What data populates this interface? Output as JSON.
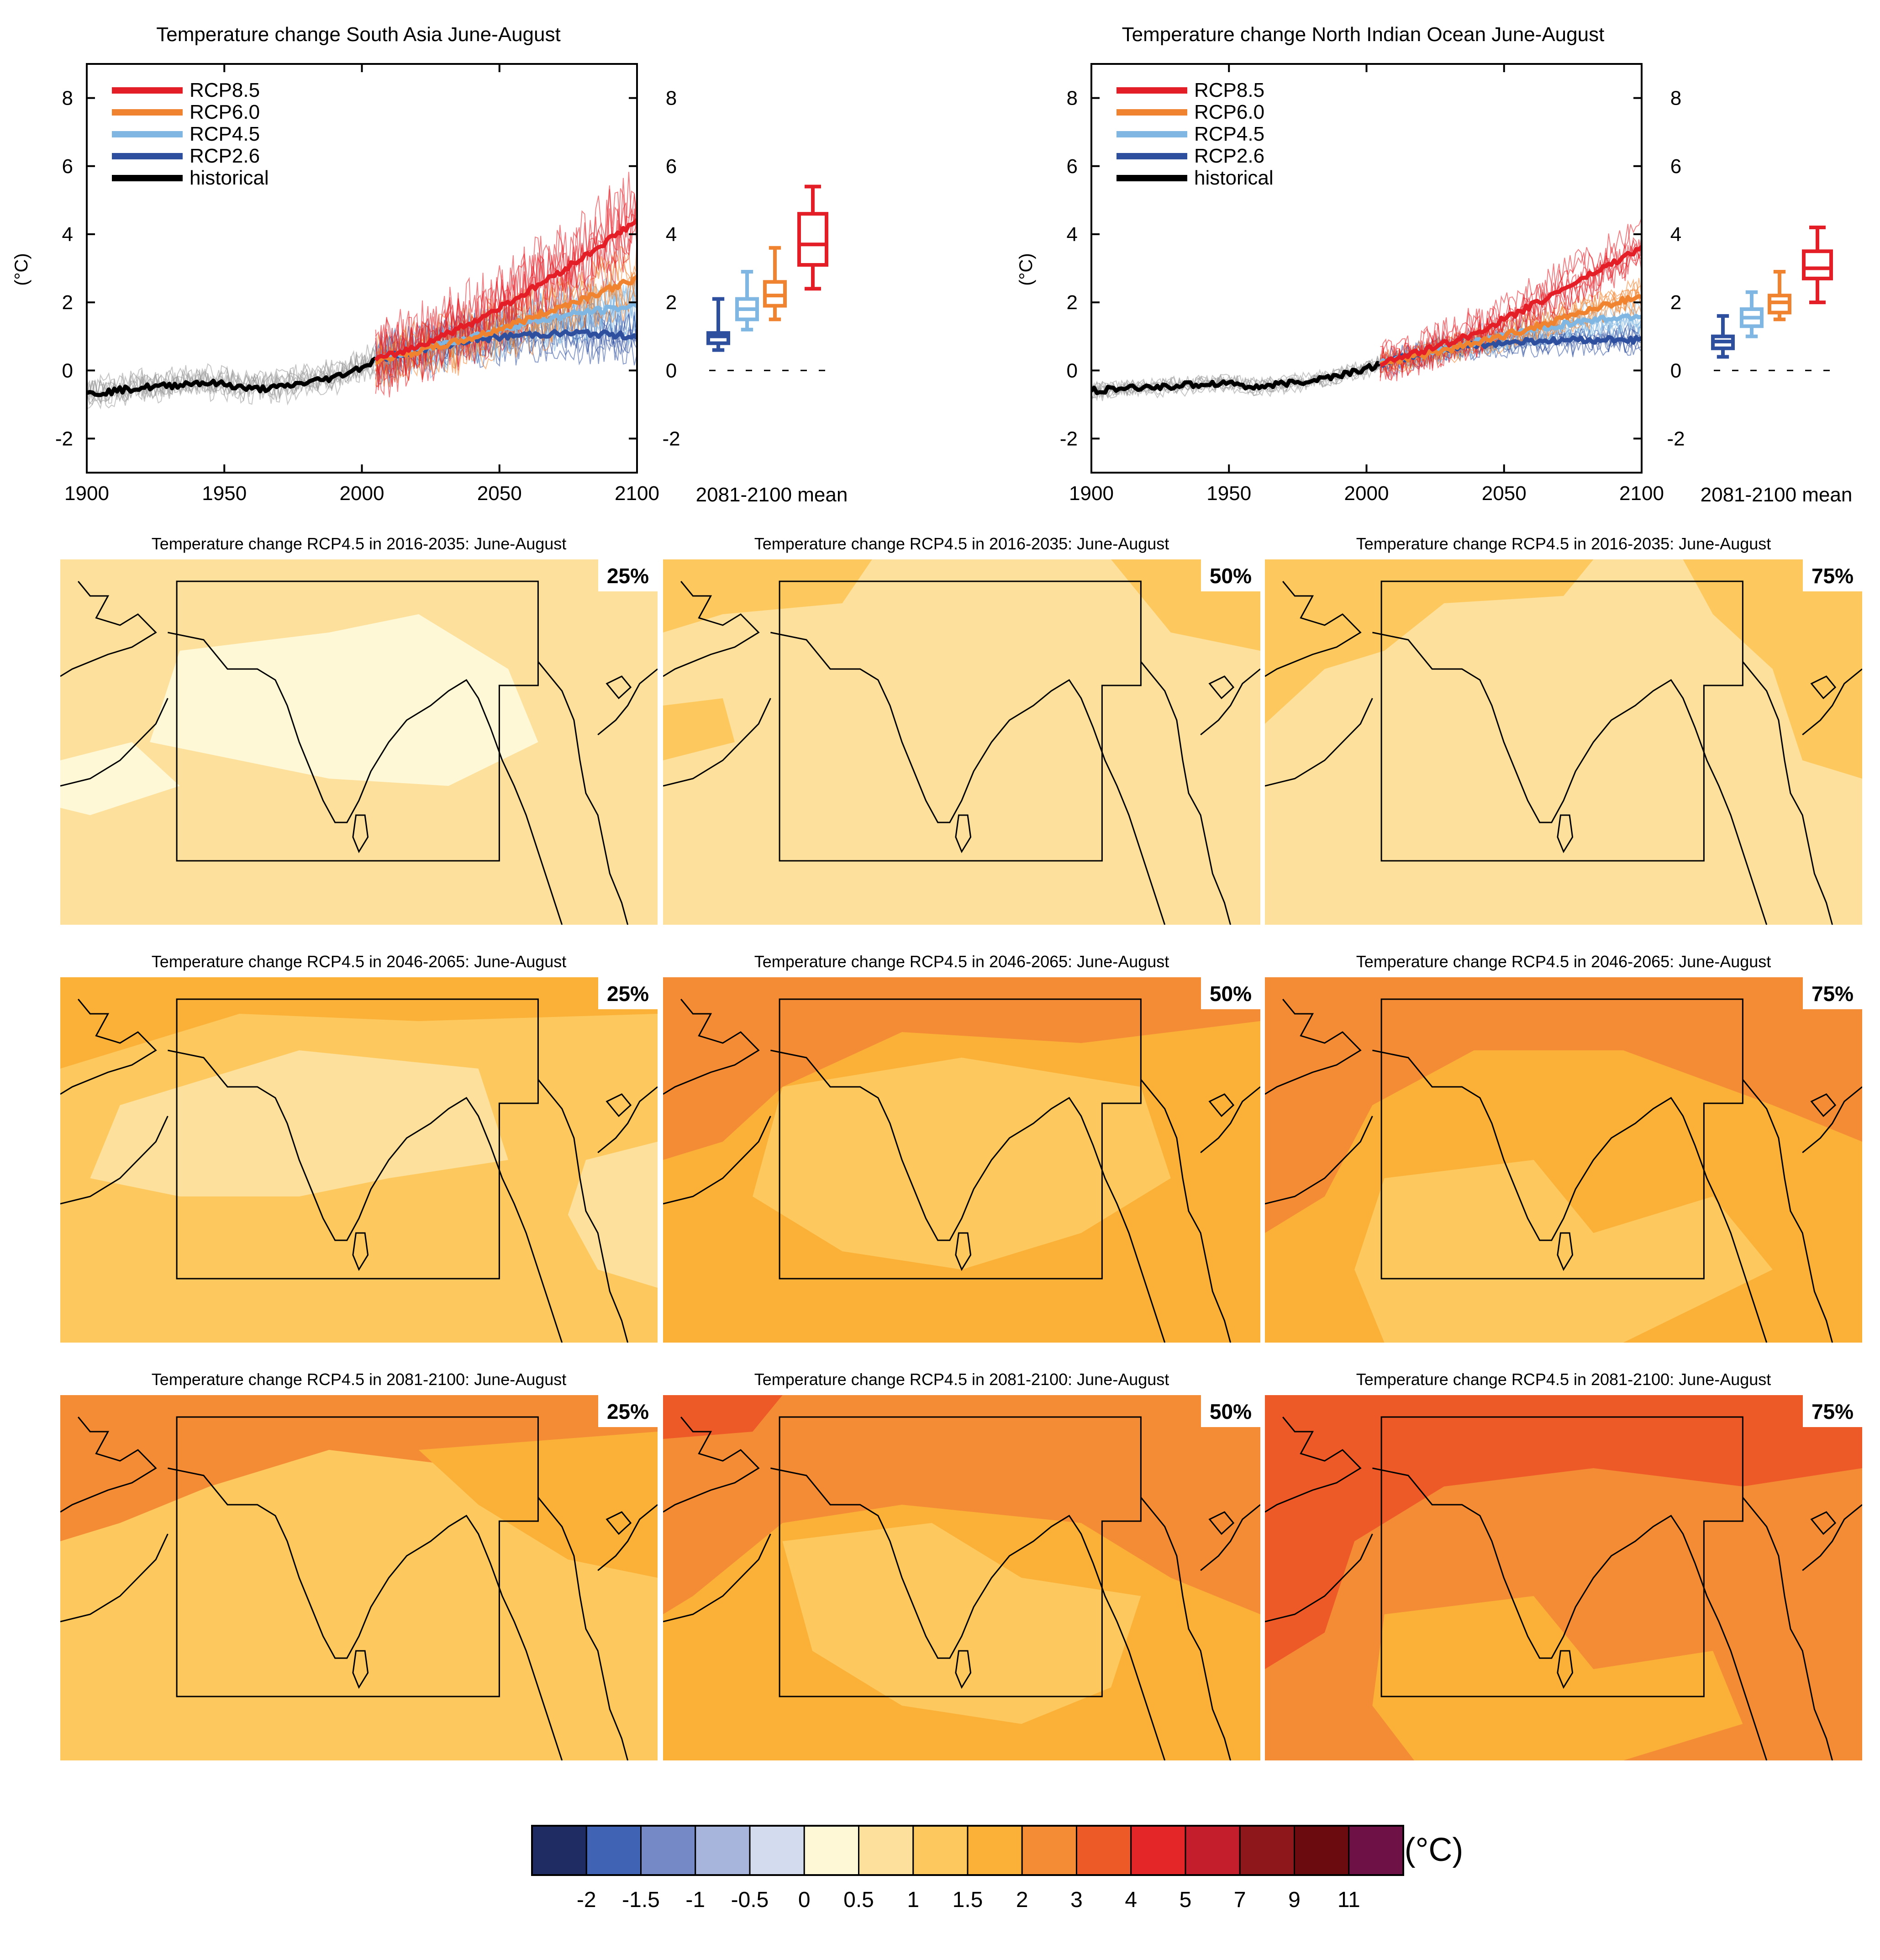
{
  "colors": {
    "rcp85": "#e41e26",
    "rcp60": "#f08330",
    "rcp45": "#7fb7e2",
    "rcp26": "#2e4f9e",
    "historical": "#000000",
    "hist_ensemble": "#999999"
  },
  "colorbar": {
    "unit": "(°C)",
    "labels": [
      "-2",
      "-1.5",
      "-1",
      "-0.5",
      "0",
      "0.5",
      "1",
      "1.5",
      "2",
      "3",
      "4",
      "5",
      "7",
      "9",
      "11"
    ],
    "colors": [
      "#1f2b63",
      "#4063b3",
      "#7589c7",
      "#a7b5dd",
      "#d3dcee",
      "#fff8d7",
      "#fde09b",
      "#fdc95f",
      "#fbb138",
      "#f48c35",
      "#ee5a27",
      "#e52629",
      "#c41e2c",
      "#8d171b",
      "#6b0b10",
      "#6e1146"
    ]
  },
  "chart_data": [
    {
      "type": "line",
      "title": "Temperature change South Asia June-August",
      "ylabel": "(°C)",
      "xlim": [
        1900,
        2100
      ],
      "ylim": [
        -3,
        9
      ],
      "xticks": [
        "1900",
        "1950",
        "2000",
        "2050",
        "2100"
      ],
      "yticks": [
        "-2",
        "0",
        "2",
        "4",
        "6",
        "8"
      ],
      "legend": [
        "RCP8.5",
        "RCP6.0",
        "RCP4.5",
        "RCP2.6",
        "historical"
      ],
      "legend_position": "top-left",
      "series": [
        {
          "name": "historical",
          "x": [
            1900,
            1910,
            1920,
            1930,
            1940,
            1950,
            1960,
            1970,
            1980,
            1990,
            2000,
            2005
          ],
          "y": [
            -0.7,
            -0.6,
            -0.5,
            -0.45,
            -0.35,
            -0.4,
            -0.55,
            -0.5,
            -0.35,
            -0.2,
            0.1,
            0.3
          ],
          "spread": 0.55
        },
        {
          "name": "RCP2.6",
          "x": [
            2005,
            2020,
            2040,
            2060,
            2080,
            2100
          ],
          "y": [
            0.3,
            0.6,
            0.9,
            1.05,
            1.1,
            1.0
          ],
          "spread": 0.9
        },
        {
          "name": "RCP4.5",
          "x": [
            2005,
            2020,
            2040,
            2060,
            2080,
            2100
          ],
          "y": [
            0.3,
            0.6,
            1.0,
            1.4,
            1.7,
            1.9
          ],
          "spread": 1.0
        },
        {
          "name": "RCP6.0",
          "x": [
            2005,
            2020,
            2040,
            2060,
            2080,
            2100
          ],
          "y": [
            0.3,
            0.55,
            0.95,
            1.5,
            2.1,
            2.7
          ],
          "spread": 1.0
        },
        {
          "name": "RCP8.5",
          "x": [
            2005,
            2020,
            2040,
            2060,
            2080,
            2100
          ],
          "y": [
            0.3,
            0.7,
            1.4,
            2.3,
            3.3,
            4.4
          ],
          "spread": 1.5
        }
      ],
      "box_axis_label": "2081-2100 mean",
      "boxes": [
        {
          "name": "RCP2.6",
          "min": 0.6,
          "q1": 0.8,
          "median": 1.0,
          "q3": 1.1,
          "max": 2.1
        },
        {
          "name": "RCP4.5",
          "min": 1.2,
          "q1": 1.5,
          "median": 1.8,
          "q3": 2.1,
          "max": 2.9
        },
        {
          "name": "RCP6.0",
          "min": 1.5,
          "q1": 1.9,
          "median": 2.2,
          "q3": 2.6,
          "max": 3.6
        },
        {
          "name": "RCP8.5",
          "min": 2.4,
          "q1": 3.1,
          "median": 3.7,
          "q3": 4.6,
          "max": 5.4
        }
      ]
    },
    {
      "type": "line",
      "title": "Temperature change North Indian Ocean June-August",
      "ylabel": "(°C)",
      "xlim": [
        1900,
        2100
      ],
      "ylim": [
        -3,
        9
      ],
      "xticks": [
        "1900",
        "1950",
        "2000",
        "2050",
        "2100"
      ],
      "yticks": [
        "-2",
        "0",
        "2",
        "4",
        "6",
        "8"
      ],
      "legend": [
        "RCP8.5",
        "RCP6.0",
        "RCP4.5",
        "RCP2.6",
        "historical"
      ],
      "legend_position": "top-left",
      "series": [
        {
          "name": "historical",
          "x": [
            1900,
            1910,
            1920,
            1930,
            1940,
            1950,
            1960,
            1970,
            1980,
            1990,
            2000,
            2005
          ],
          "y": [
            -0.6,
            -0.55,
            -0.5,
            -0.45,
            -0.4,
            -0.35,
            -0.5,
            -0.4,
            -0.3,
            -0.15,
            0.05,
            0.2
          ],
          "spread": 0.3
        },
        {
          "name": "RCP2.6",
          "x": [
            2005,
            2020,
            2040,
            2060,
            2080,
            2100
          ],
          "y": [
            0.2,
            0.5,
            0.75,
            0.85,
            0.9,
            0.9
          ],
          "spread": 0.45
        },
        {
          "name": "RCP4.5",
          "x": [
            2005,
            2020,
            2040,
            2060,
            2080,
            2100
          ],
          "y": [
            0.2,
            0.5,
            0.85,
            1.2,
            1.45,
            1.6
          ],
          "spread": 0.5
        },
        {
          "name": "RCP6.0",
          "x": [
            2005,
            2020,
            2040,
            2060,
            2080,
            2100
          ],
          "y": [
            0.2,
            0.45,
            0.8,
            1.25,
            1.75,
            2.2
          ],
          "spread": 0.5
        },
        {
          "name": "RCP8.5",
          "x": [
            2005,
            2020,
            2040,
            2060,
            2080,
            2100
          ],
          "y": [
            0.2,
            0.55,
            1.1,
            1.9,
            2.75,
            3.6
          ],
          "spread": 0.8
        }
      ],
      "box_axis_label": "2081-2100 mean",
      "boxes": [
        {
          "name": "RCP2.6",
          "min": 0.4,
          "q1": 0.65,
          "median": 0.85,
          "q3": 1.0,
          "max": 1.6
        },
        {
          "name": "RCP4.5",
          "min": 1.0,
          "q1": 1.3,
          "median": 1.55,
          "q3": 1.8,
          "max": 2.3
        },
        {
          "name": "RCP6.0",
          "min": 1.5,
          "q1": 1.7,
          "median": 2.0,
          "q3": 2.2,
          "max": 2.9
        },
        {
          "name": "RCP8.5",
          "min": 2.0,
          "q1": 2.7,
          "median": 3.0,
          "q3": 3.5,
          "max": 4.2
        }
      ]
    }
  ],
  "maps": [
    {
      "title": "Temperature change RCP4.5 in 2016-2035: June-August",
      "percentile": "25%",
      "base": "#fde09b",
      "blobs": [
        {
          "c": "#fff8d7",
          "pts": [
            [
              0.2,
              0.25
            ],
            [
              0.45,
              0.2
            ],
            [
              0.6,
              0.15
            ],
            [
              0.75,
              0.3
            ],
            [
              0.8,
              0.5
            ],
            [
              0.65,
              0.62
            ],
            [
              0.45,
              0.6
            ],
            [
              0.3,
              0.55
            ],
            [
              0.15,
              0.5
            ]
          ]
        },
        {
          "c": "#fff8d7",
          "pts": [
            [
              0.0,
              0.55
            ],
            [
              0.12,
              0.5
            ],
            [
              0.2,
              0.62
            ],
            [
              0.05,
              0.7
            ],
            [
              0.0,
              0.68
            ]
          ]
        }
      ]
    },
    {
      "title": "Temperature change RCP4.5 in 2016-2035: June-August",
      "percentile": "50%",
      "base": "#fde09b",
      "blobs": [
        {
          "c": "#fdc95f",
          "pts": [
            [
              0.0,
              0.0
            ],
            [
              0.35,
              0.0
            ],
            [
              0.3,
              0.12
            ],
            [
              0.1,
              0.15
            ],
            [
              0.0,
              0.2
            ]
          ]
        },
        {
          "c": "#fdc95f",
          "pts": [
            [
              0.75,
              0.0
            ],
            [
              1.0,
              0.0
            ],
            [
              1.0,
              0.25
            ],
            [
              0.85,
              0.2
            ]
          ]
        },
        {
          "c": "#fdc95f",
          "pts": [
            [
              0.0,
              0.4
            ],
            [
              0.1,
              0.38
            ],
            [
              0.12,
              0.5
            ],
            [
              0.0,
              0.55
            ]
          ]
        }
      ]
    },
    {
      "title": "Temperature change RCP4.5 in 2016-2035: June-August",
      "percentile": "75%",
      "base": "#fde09b",
      "blobs": [
        {
          "c": "#fdc95f",
          "pts": [
            [
              0.0,
              0.0
            ],
            [
              0.55,
              0.0
            ],
            [
              0.5,
              0.1
            ],
            [
              0.3,
              0.12
            ],
            [
              0.2,
              0.25
            ],
            [
              0.1,
              0.3
            ],
            [
              0.0,
              0.45
            ]
          ]
        },
        {
          "c": "#fdc95f",
          "pts": [
            [
              0.7,
              0.0
            ],
            [
              1.0,
              0.0
            ],
            [
              1.0,
              0.6
            ],
            [
              0.9,
              0.55
            ],
            [
              0.85,
              0.3
            ],
            [
              0.75,
              0.15
            ]
          ]
        }
      ]
    },
    {
      "title": "Temperature change RCP4.5 in 2046-2065: June-August",
      "percentile": "25%",
      "base": "#fdc95f",
      "blobs": [
        {
          "c": "#fde09b",
          "pts": [
            [
              0.1,
              0.35
            ],
            [
              0.4,
              0.2
            ],
            [
              0.7,
              0.25
            ],
            [
              0.75,
              0.5
            ],
            [
              0.55,
              0.55
            ],
            [
              0.4,
              0.6
            ],
            [
              0.2,
              0.6
            ],
            [
              0.05,
              0.55
            ]
          ]
        },
        {
          "c": "#fde09b",
          "pts": [
            [
              0.88,
              0.5
            ],
            [
              1.0,
              0.45
            ],
            [
              1.0,
              0.85
            ],
            [
              0.9,
              0.8
            ],
            [
              0.85,
              0.65
            ]
          ]
        },
        {
          "c": "#fbb138",
          "pts": [
            [
              0.0,
              0.0
            ],
            [
              1.0,
              0.0
            ],
            [
              1.0,
              0.1
            ],
            [
              0.6,
              0.12
            ],
            [
              0.3,
              0.1
            ],
            [
              0.1,
              0.2
            ],
            [
              0.0,
              0.25
            ]
          ]
        }
      ]
    },
    {
      "title": "Temperature change RCP4.5 in 2046-2065: June-August",
      "percentile": "50%",
      "base": "#fbb138",
      "blobs": [
        {
          "c": "#f48c35",
          "pts": [
            [
              0.0,
              0.0
            ],
            [
              1.0,
              0.0
            ],
            [
              1.0,
              0.12
            ],
            [
              0.7,
              0.18
            ],
            [
              0.4,
              0.15
            ],
            [
              0.2,
              0.3
            ],
            [
              0.1,
              0.45
            ],
            [
              0.0,
              0.5
            ]
          ]
        },
        {
          "c": "#fdc95f",
          "pts": [
            [
              0.2,
              0.3
            ],
            [
              0.5,
              0.22
            ],
            [
              0.8,
              0.3
            ],
            [
              0.85,
              0.55
            ],
            [
              0.7,
              0.7
            ],
            [
              0.5,
              0.8
            ],
            [
              0.3,
              0.75
            ],
            [
              0.15,
              0.6
            ]
          ]
        }
      ]
    },
    {
      "title": "Temperature change RCP4.5 in 2046-2065: June-August",
      "percentile": "75%",
      "base": "#fbb138",
      "blobs": [
        {
          "c": "#f48c35",
          "pts": [
            [
              0.0,
              0.0
            ],
            [
              1.0,
              0.0
            ],
            [
              1.0,
              0.45
            ],
            [
              0.85,
              0.35
            ],
            [
              0.6,
              0.2
            ],
            [
              0.35,
              0.2
            ],
            [
              0.18,
              0.35
            ],
            [
              0.1,
              0.6
            ],
            [
              0.0,
              0.7
            ]
          ]
        },
        {
          "c": "#fdc95f",
          "pts": [
            [
              0.2,
              0.55
            ],
            [
              0.45,
              0.5
            ],
            [
              0.55,
              0.7
            ],
            [
              0.75,
              0.6
            ],
            [
              0.85,
              0.8
            ],
            [
              0.6,
              1.0
            ],
            [
              0.2,
              1.0
            ],
            [
              0.15,
              0.8
            ]
          ]
        }
      ]
    },
    {
      "title": "Temperature change RCP4.5 in 2081-2100: June-August",
      "percentile": "25%",
      "base": "#fdc95f",
      "blobs": [
        {
          "c": "#f48c35",
          "pts": [
            [
              0.0,
              0.0
            ],
            [
              1.0,
              0.0
            ],
            [
              1.0,
              0.15
            ],
            [
              0.7,
              0.2
            ],
            [
              0.45,
              0.15
            ],
            [
              0.25,
              0.25
            ],
            [
              0.1,
              0.35
            ],
            [
              0.0,
              0.4
            ]
          ]
        },
        {
          "c": "#fbb138",
          "pts": [
            [
              0.6,
              0.15
            ],
            [
              1.0,
              0.1
            ],
            [
              1.0,
              0.5
            ],
            [
              0.85,
              0.45
            ],
            [
              0.7,
              0.3
            ]
          ]
        }
      ]
    },
    {
      "title": "Temperature change RCP4.5 in 2081-2100: June-August",
      "percentile": "50%",
      "base": "#fbb138",
      "blobs": [
        {
          "c": "#f48c35",
          "pts": [
            [
              0.0,
              0.0
            ],
            [
              1.0,
              0.0
            ],
            [
              1.0,
              0.6
            ],
            [
              0.85,
              0.5
            ],
            [
              0.7,
              0.35
            ],
            [
              0.4,
              0.3
            ],
            [
              0.2,
              0.35
            ],
            [
              0.05,
              0.55
            ],
            [
              0.0,
              0.6
            ]
          ]
        },
        {
          "c": "#ee5a27",
          "pts": [
            [
              0.0,
              0.0
            ],
            [
              0.2,
              0.0
            ],
            [
              0.15,
              0.1
            ],
            [
              0.0,
              0.12
            ]
          ]
        },
        {
          "c": "#fdc95f",
          "pts": [
            [
              0.2,
              0.4
            ],
            [
              0.45,
              0.35
            ],
            [
              0.6,
              0.5
            ],
            [
              0.8,
              0.55
            ],
            [
              0.75,
              0.8
            ],
            [
              0.6,
              0.9
            ],
            [
              0.4,
              0.85
            ],
            [
              0.25,
              0.7
            ]
          ]
        }
      ]
    },
    {
      "title": "Temperature change RCP4.5 in 2081-2100: June-August",
      "percentile": "75%",
      "base": "#f48c35",
      "blobs": [
        {
          "c": "#ee5a27",
          "pts": [
            [
              0.0,
              0.0
            ],
            [
              1.0,
              0.0
            ],
            [
              1.0,
              0.2
            ],
            [
              0.8,
              0.25
            ],
            [
              0.55,
              0.2
            ],
            [
              0.3,
              0.25
            ],
            [
              0.15,
              0.4
            ],
            [
              0.1,
              0.65
            ],
            [
              0.0,
              0.75
            ]
          ]
        },
        {
          "c": "#fbb138",
          "pts": [
            [
              0.2,
              0.6
            ],
            [
              0.45,
              0.55
            ],
            [
              0.55,
              0.75
            ],
            [
              0.75,
              0.7
            ],
            [
              0.8,
              0.9
            ],
            [
              0.6,
              1.0
            ],
            [
              0.25,
              1.0
            ],
            [
              0.18,
              0.85
            ]
          ]
        }
      ]
    }
  ]
}
